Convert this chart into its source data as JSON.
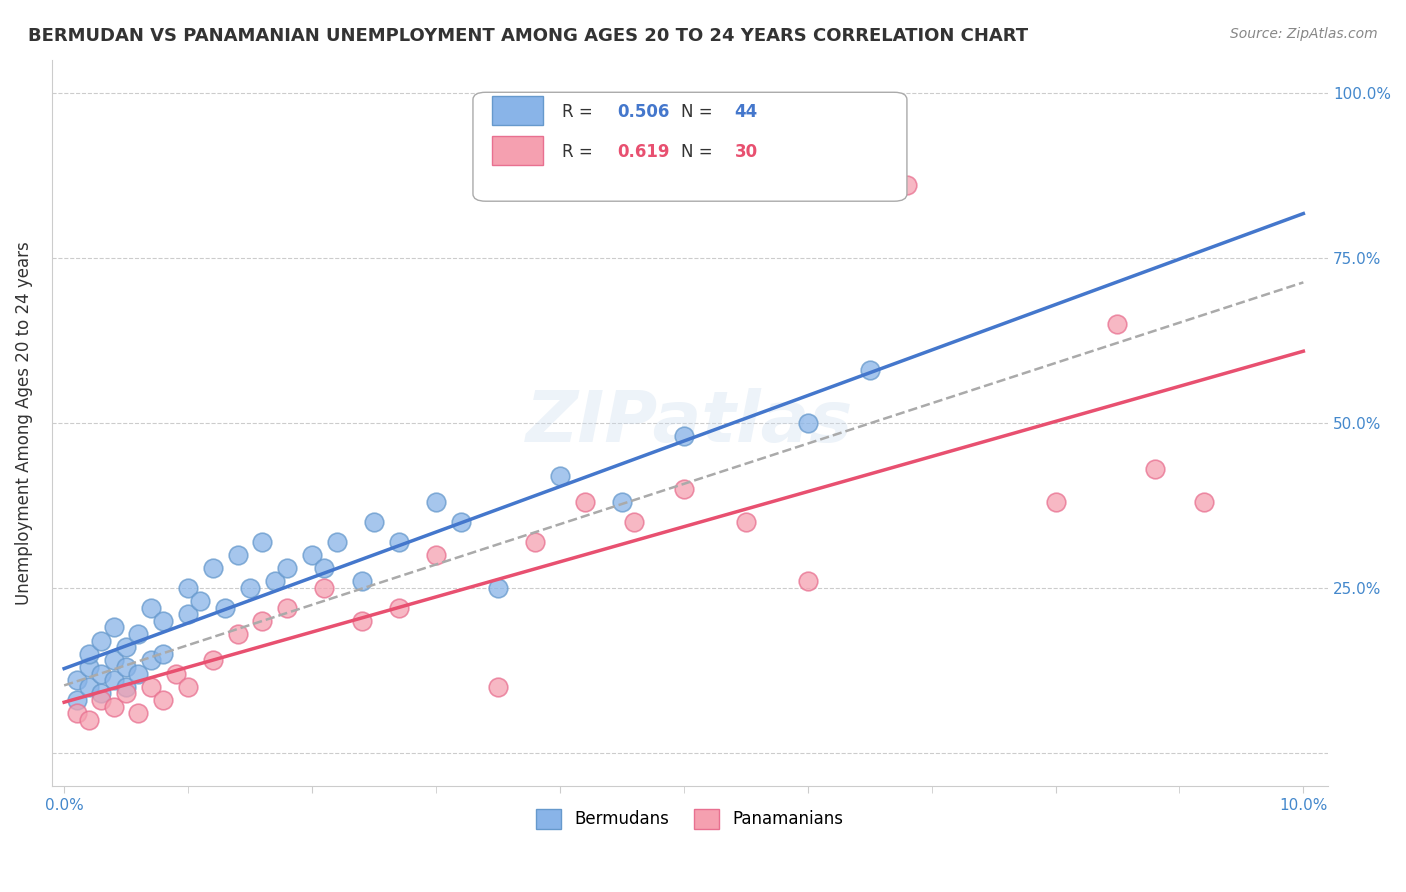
{
  "title": "BERMUDAN VS PANAMANIAN UNEMPLOYMENT AMONG AGES 20 TO 24 YEARS CORRELATION CHART",
  "source": "Source: ZipAtlas.com",
  "ylabel": "Unemployment Among Ages 20 to 24 years",
  "xlim": [
    -0.001,
    0.102
  ],
  "ylim": [
    -0.05,
    1.05
  ],
  "bermuda_color": "#89b4e8",
  "bermuda_edge": "#6699cc",
  "panama_color": "#f5a0b0",
  "panama_edge": "#e87090",
  "trend_bermuda_color": "#4477cc",
  "trend_panama_color": "#e85070",
  "trend_dashed_color": "#aaaaaa",
  "legend_r_bermuda": "0.506",
  "legend_n_bermuda": "44",
  "legend_r_panama": "0.619",
  "legend_n_panama": "30",
  "watermark": "ZIPatlas",
  "bermuda_x": [
    0.001,
    0.001,
    0.002,
    0.002,
    0.002,
    0.003,
    0.003,
    0.003,
    0.004,
    0.004,
    0.004,
    0.005,
    0.005,
    0.005,
    0.006,
    0.006,
    0.007,
    0.007,
    0.008,
    0.008,
    0.01,
    0.01,
    0.011,
    0.012,
    0.013,
    0.014,
    0.015,
    0.016,
    0.017,
    0.018,
    0.02,
    0.021,
    0.022,
    0.024,
    0.025,
    0.027,
    0.03,
    0.032,
    0.035,
    0.04,
    0.045,
    0.05,
    0.06,
    0.065
  ],
  "bermuda_y": [
    0.08,
    0.11,
    0.1,
    0.13,
    0.15,
    0.09,
    0.12,
    0.17,
    0.11,
    0.14,
    0.19,
    0.1,
    0.13,
    0.16,
    0.12,
    0.18,
    0.14,
    0.22,
    0.15,
    0.2,
    0.21,
    0.25,
    0.23,
    0.28,
    0.22,
    0.3,
    0.25,
    0.32,
    0.26,
    0.28,
    0.3,
    0.28,
    0.32,
    0.26,
    0.35,
    0.32,
    0.38,
    0.35,
    0.25,
    0.42,
    0.38,
    0.48,
    0.5,
    0.58
  ],
  "panama_x": [
    0.001,
    0.002,
    0.003,
    0.004,
    0.005,
    0.006,
    0.007,
    0.008,
    0.009,
    0.01,
    0.012,
    0.014,
    0.016,
    0.018,
    0.021,
    0.024,
    0.027,
    0.03,
    0.035,
    0.038,
    0.042,
    0.046,
    0.05,
    0.055,
    0.06,
    0.068,
    0.08,
    0.085,
    0.088,
    0.092
  ],
  "panama_y": [
    0.06,
    0.05,
    0.08,
    0.07,
    0.09,
    0.06,
    0.1,
    0.08,
    0.12,
    0.1,
    0.14,
    0.18,
    0.2,
    0.22,
    0.25,
    0.2,
    0.22,
    0.3,
    0.1,
    0.32,
    0.38,
    0.35,
    0.4,
    0.35,
    0.26,
    0.86,
    0.38,
    0.65,
    0.43,
    0.38
  ]
}
